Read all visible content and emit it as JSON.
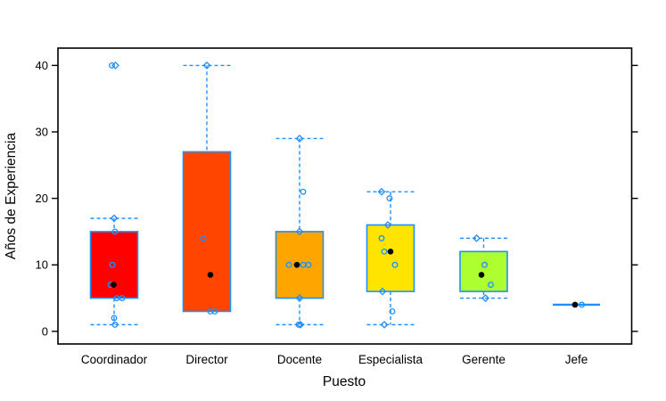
{
  "figure": {
    "background": "#FFFFFF"
  },
  "chart_data": {
    "type": "boxplot",
    "title": "",
    "xlabel": "Puesto",
    "ylabel": "Años de Experiencia",
    "categories": [
      "Coordinador",
      "Director",
      "Docente",
      "Especialista",
      "Gerente",
      "Jefe"
    ],
    "yticks": [
      0,
      10,
      20,
      30,
      40
    ],
    "ylim": [
      -1.9,
      42.6
    ],
    "grid": false,
    "legend": "none",
    "colors": {
      "axis": "#000000",
      "box_border": "#1E90FF",
      "whisker": "#1E90FF",
      "points": "#1E90FF",
      "median": "#000000"
    },
    "boxes": [
      {
        "category": "Coordinador",
        "fill": "#FF0000",
        "q1": 5,
        "median": 7,
        "q3": 15,
        "whisker_low": 1,
        "whisker_high": 17,
        "outliers": [
          40
        ],
        "median_dx": -0.5,
        "points_circle": [
          [
            40,
            -2.5
          ],
          [
            15,
            1
          ],
          [
            10,
            -2
          ],
          [
            7,
            -4
          ],
          [
            5,
            3
          ],
          [
            5,
            9
          ],
          [
            2,
            0
          ],
          [
            1,
            1
          ]
        ],
        "points_diamond": [
          [
            40,
            1.5
          ],
          [
            17,
            0
          ]
        ]
      },
      {
        "category": "Director",
        "fill": "#FF4500",
        "q1": 3,
        "median": 8.5,
        "q3": 27,
        "whisker_low": 3,
        "whisker_high": 40,
        "outliers": [],
        "median_dx": 4,
        "points_circle": [
          [
            14,
            -4
          ],
          [
            3,
            4
          ],
          [
            3,
            9
          ]
        ],
        "points_diamond": [
          [
            40,
            0
          ]
        ]
      },
      {
        "category": "Docente",
        "fill": "#FFA500",
        "q1": 5,
        "median": 10,
        "q3": 15,
        "whisker_low": 1,
        "whisker_high": 29,
        "outliers": [],
        "median_dx": -3,
        "points_circle": [
          [
            21,
            4
          ],
          [
            10,
            -12
          ],
          [
            10,
            -3
          ],
          [
            10,
            4
          ],
          [
            10,
            10
          ],
          [
            1,
            -1
          ]
        ],
        "points_diamond": [
          [
            29,
            0
          ],
          [
            15,
            0
          ],
          [
            5,
            0
          ],
          [
            1,
            1
          ]
        ]
      },
      {
        "category": "Especialista",
        "fill": "#FFE400",
        "q1": 6,
        "median": 12,
        "q3": 16,
        "whisker_low": 1,
        "whisker_high": 21,
        "outliers": [],
        "median_dx": 0,
        "points_circle": [
          [
            20,
            -1
          ],
          [
            14,
            -10
          ],
          [
            12,
            -7
          ],
          [
            10,
            5
          ],
          [
            3,
            2
          ]
        ],
        "points_diamond": [
          [
            21,
            -10
          ],
          [
            16,
            -3
          ],
          [
            6,
            -9
          ],
          [
            1,
            -7
          ]
        ]
      },
      {
        "category": "Gerente",
        "fill": "#ADFF2F",
        "q1": 6,
        "median": 8.5,
        "q3": 12,
        "whisker_low": 5,
        "whisker_high": 14,
        "outliers": [],
        "median_dx": -2.5,
        "points_circle": [
          [
            10,
            1
          ],
          [
            7,
            8
          ]
        ],
        "points_diamond": [
          [
            14,
            -8
          ],
          [
            5,
            2
          ]
        ]
      },
      {
        "category": "Jefe",
        "fill": null,
        "q1": 4,
        "median": 4,
        "q3": 4,
        "whisker_low": 4,
        "whisker_high": 4,
        "outliers": [],
        "median_dx": -1.5,
        "points_circle": [
          [
            4,
            6
          ]
        ],
        "points_diamond": []
      }
    ]
  }
}
